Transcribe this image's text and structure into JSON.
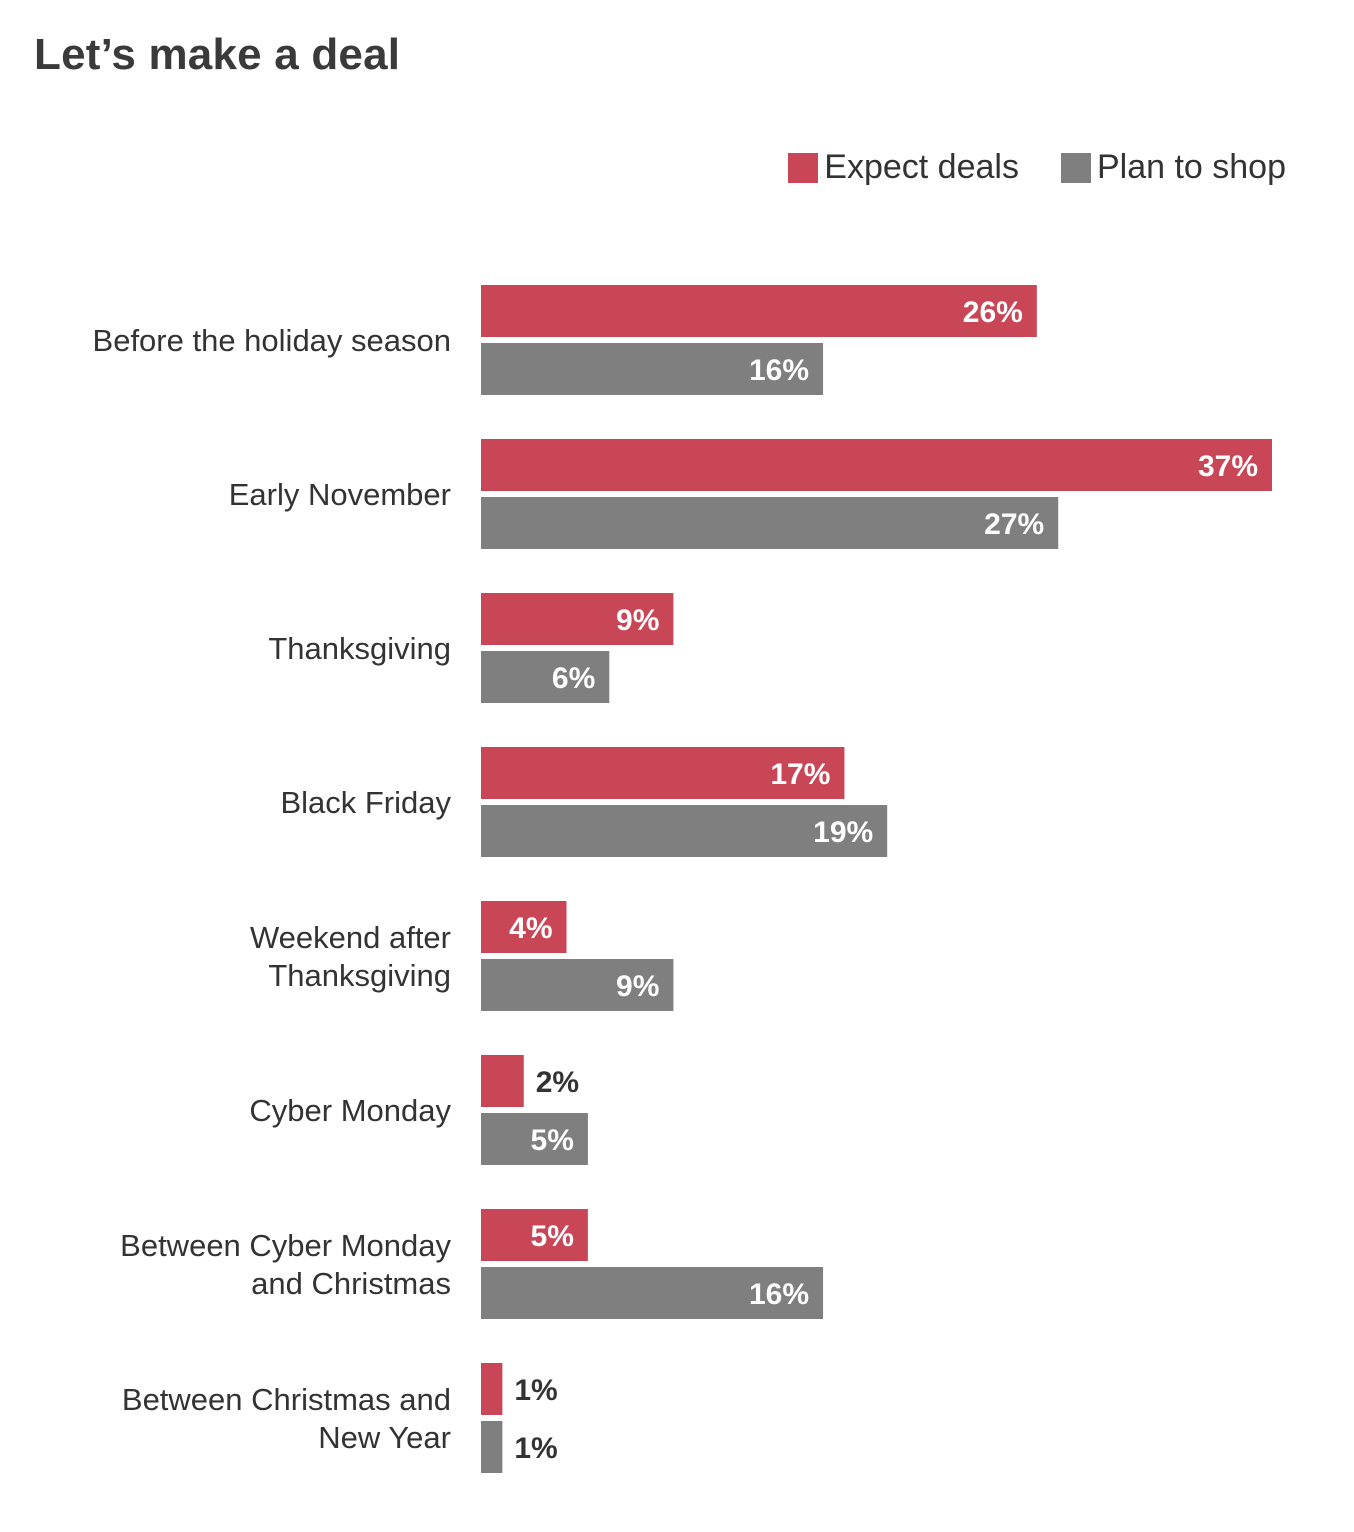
{
  "chart_data": {
    "type": "bar",
    "orientation": "horizontal",
    "title": "Let’s make a deal",
    "categories": [
      [
        "Before the holiday season"
      ],
      [
        "Early November"
      ],
      [
        "Thanksgiving"
      ],
      [
        "Black Friday"
      ],
      [
        "Weekend after",
        "Thanksgiving"
      ],
      [
        "Cyber Monday"
      ],
      [
        "Between Cyber Monday",
        "and Christmas"
      ],
      [
        "Between Christmas and",
        "New Year"
      ]
    ],
    "series": [
      {
        "name": "Expect deals",
        "color": "#c94657",
        "values": [
          26,
          37,
          9,
          17,
          4,
          2,
          5,
          1
        ],
        "labels": [
          "26%",
          "37%",
          "9%",
          "17%",
          "4%",
          "2%",
          "5%",
          "1%"
        ]
      },
      {
        "name": "Plan to shop",
        "color": "#7f7f7f",
        "values": [
          16,
          27,
          6,
          19,
          9,
          5,
          16,
          1
        ],
        "labels": [
          "16%",
          "27%",
          "6%",
          "19%",
          "9%",
          "5%",
          "16%",
          "1%"
        ]
      }
    ],
    "xlim": [
      0,
      37
    ],
    "grid": false,
    "legend_position": "top-right"
  }
}
